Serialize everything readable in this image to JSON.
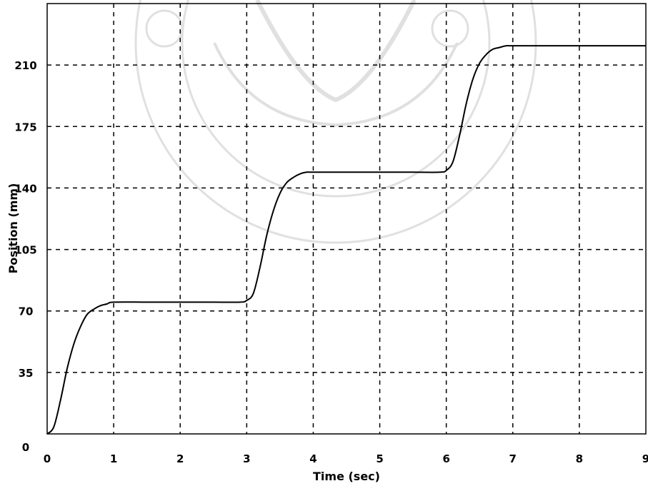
{
  "chart_data": {
    "type": "line",
    "title": "",
    "xlabel": "Time (sec)",
    "ylabel": "Position (mm)",
    "xlim": [
      0,
      9
    ],
    "ylim": [
      0,
      245
    ],
    "grid": true,
    "x_ticks": [
      0,
      1,
      2,
      3,
      4,
      5,
      6,
      7,
      8,
      9
    ],
    "x_tick_labels": [
      "0",
      "1",
      "2",
      "3",
      "4",
      "5",
      "6",
      "7",
      "8",
      "9"
    ],
    "y_ticks": [
      0,
      35,
      70,
      105,
      140,
      175,
      210
    ],
    "y_tick_labels": [
      "0",
      "35",
      "70",
      "105",
      "140",
      "175",
      "210"
    ],
    "series": [
      {
        "color": "#000000",
        "x": [
          0,
          0.1,
          0.2,
          0.3,
          0.4,
          0.5,
          0.6,
          0.7,
          0.8,
          0.9,
          1.0,
          1.5,
          2.0,
          2.5,
          2.9,
          3.0,
          3.1,
          3.2,
          3.3,
          3.4,
          3.5,
          3.6,
          3.7,
          3.8,
          3.9,
          4.0,
          4.5,
          5.0,
          5.5,
          5.9,
          6.0,
          6.1,
          6.2,
          6.3,
          6.4,
          6.5,
          6.6,
          6.7,
          6.8,
          6.9,
          7.0,
          7.5,
          8.0,
          8.5,
          9.0
        ],
        "y": [
          0,
          4,
          19,
          37,
          51,
          61,
          68,
          71,
          73,
          74,
          75,
          75,
          75,
          75,
          75,
          76,
          80,
          95,
          113,
          127,
          137,
          143,
          146,
          148,
          149,
          149,
          149,
          149,
          149,
          149,
          150,
          155,
          170,
          188,
          202,
          211,
          216,
          219,
          220,
          221,
          221,
          221,
          221,
          221,
          221
        ]
      }
    ]
  }
}
